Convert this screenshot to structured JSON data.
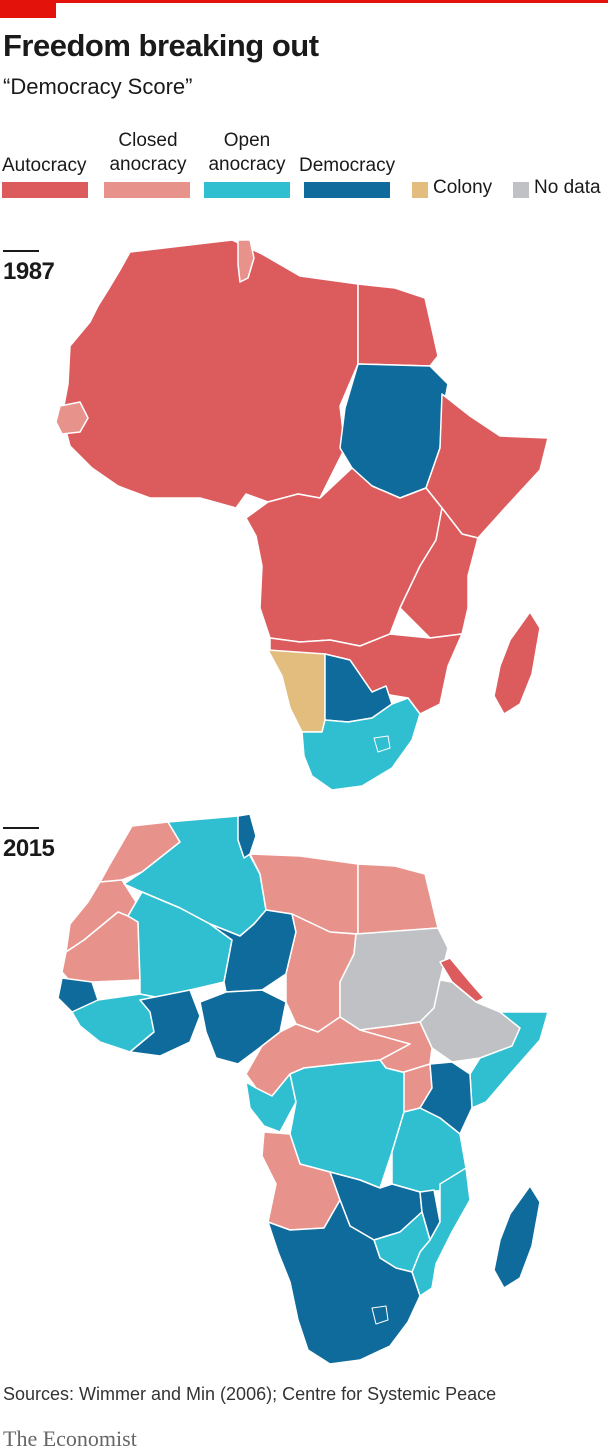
{
  "header": {
    "title": "Freedom breaking out",
    "subtitle": "“Democracy Score”"
  },
  "legend": {
    "items": [
      {
        "label": "Autocracy",
        "color": "#dc5c5e"
      },
      {
        "label": "Closed anocracy",
        "color": "#e8928c"
      },
      {
        "label": "Open anocracy",
        "color": "#2fbfd1"
      },
      {
        "label": "Democracy",
        "color": "#0f6b9c"
      },
      {
        "label": "Colony",
        "color": "#e2bd7e"
      },
      {
        "label": "No data",
        "color": "#c0c1c4"
      }
    ]
  },
  "maps": [
    {
      "year": "1987",
      "regions": [
        {
          "name": "north-africa",
          "status": "Autocracy"
        },
        {
          "name": "egypt",
          "status": "Autocracy"
        },
        {
          "name": "tunisia",
          "status": "Closed anocracy"
        },
        {
          "name": "senegal",
          "status": "Closed anocracy"
        },
        {
          "name": "west-africa",
          "status": "Autocracy"
        },
        {
          "name": "sudan",
          "status": "Democracy"
        },
        {
          "name": "horn-of-africa",
          "status": "Autocracy"
        },
        {
          "name": "central-africa",
          "status": "Autocracy"
        },
        {
          "name": "east-africa",
          "status": "Autocracy"
        },
        {
          "name": "southern-africa",
          "status": "Autocracy"
        },
        {
          "name": "namibia",
          "status": "Colony"
        },
        {
          "name": "botswana",
          "status": "Democracy"
        },
        {
          "name": "south-africa",
          "status": "Open anocracy"
        },
        {
          "name": "madagascar",
          "status": "Autocracy"
        }
      ]
    },
    {
      "year": "2015",
      "regions": [
        {
          "name": "morocco",
          "status": "Closed anocracy"
        },
        {
          "name": "algeria",
          "status": "Open anocracy"
        },
        {
          "name": "tunisia",
          "status": "Democracy"
        },
        {
          "name": "libya",
          "status": "Closed anocracy"
        },
        {
          "name": "egypt",
          "status": "Closed anocracy"
        },
        {
          "name": "mali",
          "status": "Open anocracy"
        },
        {
          "name": "niger",
          "status": "Democracy"
        },
        {
          "name": "chad",
          "status": "Closed anocracy"
        },
        {
          "name": "sudan",
          "status": "No data"
        },
        {
          "name": "eritrea",
          "status": "Autocracy"
        },
        {
          "name": "ethiopia",
          "status": "No data"
        },
        {
          "name": "west-coast",
          "status": "Open anocracy"
        },
        {
          "name": "nigeria",
          "status": "Democracy"
        },
        {
          "name": "central-africa",
          "status": "Closed anocracy"
        },
        {
          "name": "dr-congo",
          "status": "Open anocracy"
        },
        {
          "name": "kenya",
          "status": "Democracy"
        },
        {
          "name": "somalia",
          "status": "Open anocracy"
        },
        {
          "name": "tanzania",
          "status": "Open anocracy"
        },
        {
          "name": "angola",
          "status": "Closed anocracy"
        },
        {
          "name": "zambia",
          "status": "Democracy"
        },
        {
          "name": "mozambique",
          "status": "Open anocracy"
        },
        {
          "name": "southern-africa",
          "status": "Democracy"
        },
        {
          "name": "madagascar",
          "status": "Democracy"
        }
      ]
    }
  ],
  "footer": {
    "source": "Sources: Wimmer and Min (2006); Centre for Systemic Peace",
    "brand": "The Economist"
  }
}
